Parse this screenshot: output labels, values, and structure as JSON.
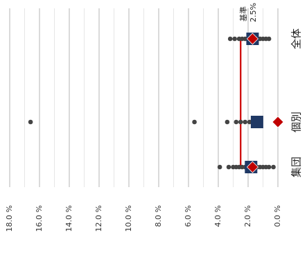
{
  "chart_data": {
    "type": "scatter",
    "orientation": "value axis rotated; categories on the right edge",
    "categories": [
      "集団",
      "個別",
      "全体"
    ],
    "value_axis": {
      "ticks": [
        "0.0 %",
        "2.0 %",
        "4.0 %",
        "6.0 %",
        "8.0 %",
        "10.0 %",
        "12.0 %",
        "14.0 %",
        "16.0 %",
        "18.0 %"
      ],
      "range": [
        0,
        18
      ],
      "major_step": 2,
      "minor_step": 1,
      "grid": true
    },
    "reference_line": {
      "label_line1": "基準",
      "label_line2": "2.5%",
      "value": 2.5,
      "color": "#cc0000"
    },
    "series": [
      {
        "name": "",
        "marker": "dot",
        "color": "#444444",
        "points": {
          "集団": [
            3.9,
            3.3,
            3.0,
            2.8,
            2.6,
            2.4,
            2.2,
            2.0,
            1.8,
            1.6,
            1.4,
            1.2,
            1.0,
            0.8,
            0.6,
            0.3
          ],
          "個別": [
            16.6,
            5.6,
            3.4,
            2.8,
            2.5,
            2.2,
            1.9,
            1.6,
            1.3
          ],
          "全体": [
            3.2,
            2.9,
            2.6,
            2.4,
            2.2,
            2.0,
            1.8,
            1.6,
            1.4,
            1.2,
            1.0,
            0.8,
            0.6
          ]
        }
      },
      {
        "name": "",
        "marker": "square",
        "color": "#1f3864",
        "values": {
          "集団": 1.8,
          "個別": 1.4,
          "全体": 1.7
        }
      },
      {
        "name": "",
        "marker": "diamond",
        "color": "#c00000",
        "values": {
          "集団": 1.7,
          "個別": 0.0,
          "全体": 1.7
        }
      }
    ]
  }
}
